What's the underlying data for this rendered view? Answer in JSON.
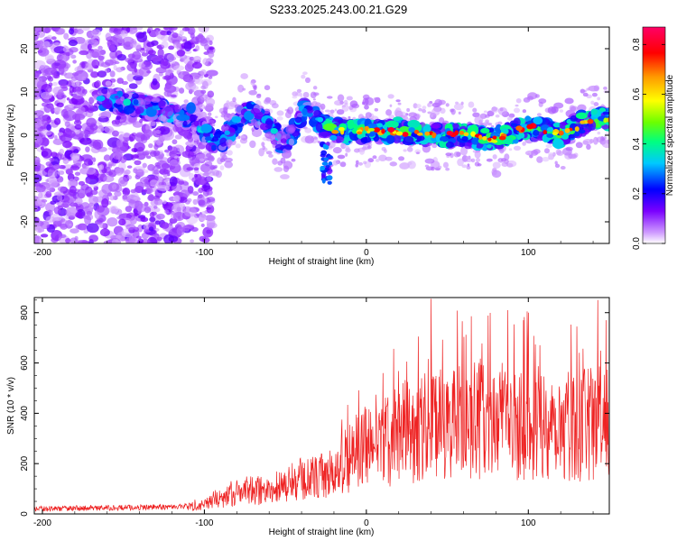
{
  "title": "S233.2025.243.00.21.G29",
  "chart_data": [
    {
      "type": "heatmap",
      "xlabel": "Height of straight line (km)",
      "ylabel": "Frequency (Hz)",
      "xlim": [
        -205,
        150
      ],
      "ylim": [
        -25,
        25
      ],
      "xticks": [
        -200,
        -100,
        0,
        100
      ],
      "yticks": [
        -20,
        -10,
        0,
        10,
        20
      ],
      "colorbar": {
        "label": "Normalized spectral amplitude",
        "range": [
          0,
          0.87
        ],
        "ticks": [
          0.0,
          0.2,
          0.4,
          0.6,
          0.8
        ],
        "tick_labels": [
          "0.0",
          "0.2",
          "0.4",
          "0.6",
          "0.8"
        ],
        "colors": [
          "#ffffff",
          "#cf9cff",
          "#7a00ff",
          "#0000ff",
          "#00c8ff",
          "#00ff80",
          "#6cff00",
          "#ffff00",
          "#ff9900",
          "#ff0000",
          "#ff0066"
        ]
      },
      "ridge": [
        {
          "x": -160,
          "y": 8
        },
        {
          "x": -140,
          "y": 7
        },
        {
          "x": -120,
          "y": 5
        },
        {
          "x": -105,
          "y": 4
        },
        {
          "x": -95,
          "y": -2
        },
        {
          "x": -85,
          "y": 0
        },
        {
          "x": -75,
          "y": 6
        },
        {
          "x": -60,
          "y": 3
        },
        {
          "x": -50,
          "y": -3
        },
        {
          "x": -38,
          "y": 7
        },
        {
          "x": -30,
          "y": 3
        },
        {
          "x": -20,
          "y": 1
        },
        {
          "x": 0,
          "y": 1
        },
        {
          "x": 20,
          "y": 1
        },
        {
          "x": 40,
          "y": 0
        },
        {
          "x": 60,
          "y": 0
        },
        {
          "x": 80,
          "y": -1
        },
        {
          "x": 100,
          "y": 2
        },
        {
          "x": 120,
          "y": 0
        },
        {
          "x": 135,
          "y": 3
        },
        {
          "x": 150,
          "y": 4
        }
      ]
    },
    {
      "type": "line",
      "xlabel": "Height of straight line (km)",
      "ylabel": "SNR (10 * v/v)",
      "xlim": [
        -205,
        150
      ],
      "ylim": [
        0,
        860
      ],
      "xticks": [
        -200,
        -100,
        0,
        100
      ],
      "yticks": [
        0,
        200,
        400,
        600,
        800
      ],
      "series": [
        {
          "name": "SNR",
          "color": "#ee2222",
          "trend": [
            {
              "x": -205,
              "y": 20
            },
            {
              "x": -150,
              "y": 25
            },
            {
              "x": -110,
              "y": 30
            },
            {
              "x": -95,
              "y": 55
            },
            {
              "x": -80,
              "y": 90
            },
            {
              "x": -60,
              "y": 100
            },
            {
              "x": -40,
              "y": 140
            },
            {
              "x": -20,
              "y": 160
            },
            {
              "x": -10,
              "y": 240
            },
            {
              "x": 10,
              "y": 290
            },
            {
              "x": 30,
              "y": 350
            },
            {
              "x": 50,
              "y": 370
            },
            {
              "x": 80,
              "y": 380
            },
            {
              "x": 110,
              "y": 370
            },
            {
              "x": 150,
              "y": 360
            }
          ],
          "peaks": [
            {
              "x": 40,
              "y": 855
            },
            {
              "x": 143,
              "y": 850
            },
            {
              "x": 32,
              "y": 705
            },
            {
              "x": 97,
              "y": 770
            },
            {
              "x": 100,
              "y": 800
            },
            {
              "x": 130,
              "y": 745
            },
            {
              "x": 148,
              "y": 770
            }
          ]
        }
      ]
    }
  ]
}
